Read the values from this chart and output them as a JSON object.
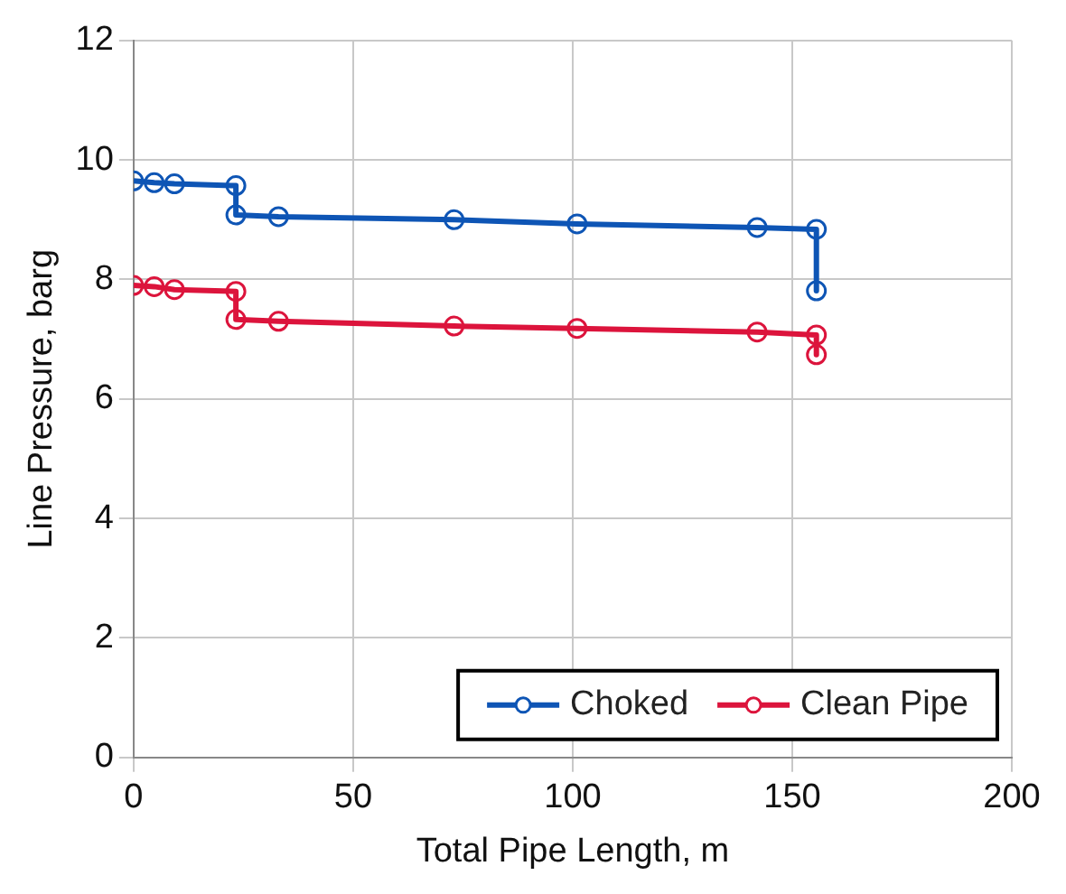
{
  "chart_data": {
    "type": "line",
    "xlabel": "Total Pipe Length, m",
    "ylabel": "Line Pressure, barg",
    "xlim": [
      0,
      200
    ],
    "xticks": [
      0,
      50,
      100,
      150,
      200
    ],
    "ylim": [
      0,
      12
    ],
    "yticks": [
      0,
      2,
      4,
      6,
      8,
      10,
      12
    ],
    "grid": true,
    "legend": "bottom right",
    "marker": "circle",
    "line_style": "solid",
    "series": [
      {
        "name": "Choked",
        "color": "#0e55b5",
        "x": [
          0,
          4.7,
          9.3,
          23.3,
          23.3,
          33,
          73,
          101,
          142,
          155.5,
          155.5
        ],
        "values": [
          9.65,
          9.62,
          9.6,
          9.57,
          9.08,
          9.05,
          9.0,
          8.93,
          8.87,
          8.84,
          7.81
        ]
      },
      {
        "name": "Clean Pipe",
        "color": "#dc143c",
        "x": [
          0,
          4.7,
          9.3,
          23.3,
          23.3,
          33,
          73,
          101,
          142,
          155.5,
          155.5
        ],
        "values": [
          7.9,
          7.88,
          7.83,
          7.8,
          7.33,
          7.3,
          7.22,
          7.18,
          7.12,
          7.07,
          6.74
        ]
      }
    ]
  }
}
